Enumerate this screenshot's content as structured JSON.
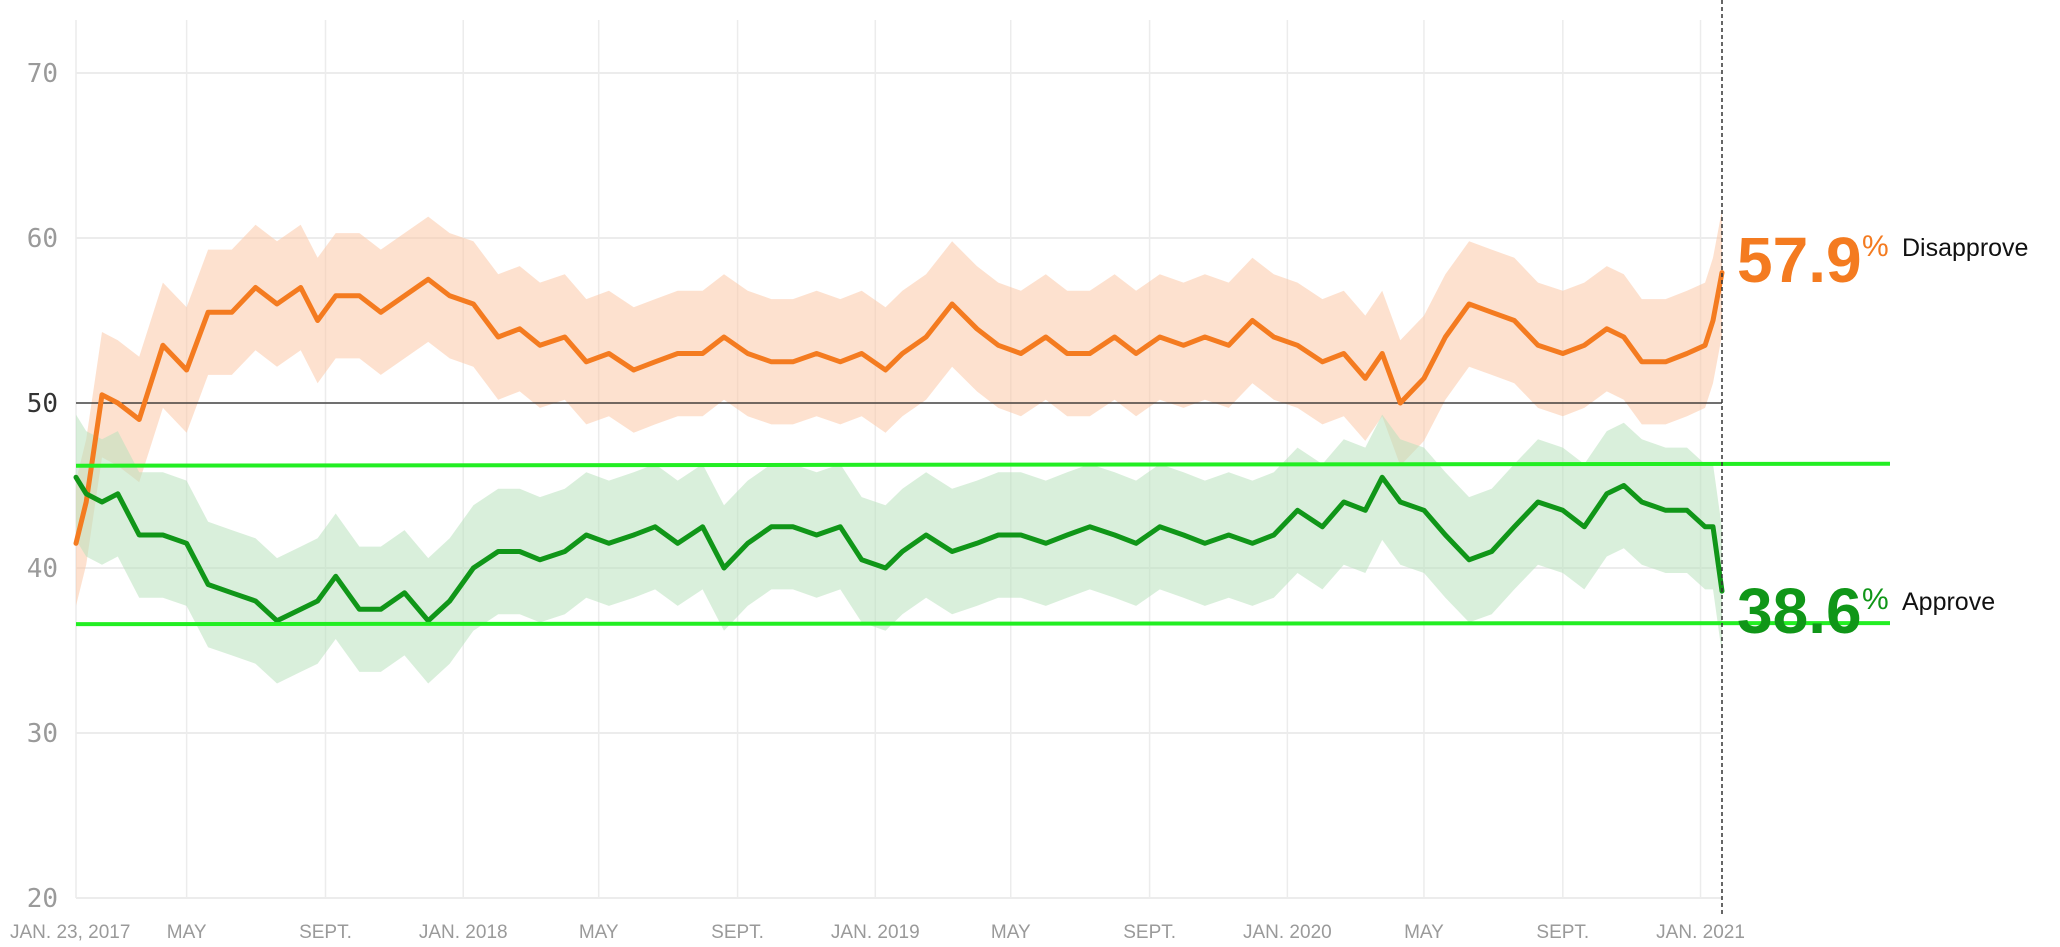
{
  "chart_data": {
    "type": "line",
    "x_ticks": [
      "JAN. 23, 2017",
      "MAY",
      "SEPT.",
      "JAN. 2018",
      "MAY",
      "SEPT.",
      "JAN. 2019",
      "MAY",
      "SEPT.",
      "JAN. 2020",
      "MAY",
      "SEPT.",
      "JAN. 2021"
    ],
    "x_tick_dates": [
      "2017-01-23",
      "2017-05-01",
      "2017-09-01",
      "2018-01-01",
      "2018-05-01",
      "2018-09-01",
      "2019-01-01",
      "2019-05-01",
      "2019-09-01",
      "2020-01-01",
      "2020-05-01",
      "2020-09-01",
      "2021-01-01"
    ],
    "x_range": [
      "2017-01-23",
      "2021-01-20"
    ],
    "y_ticks": [
      20,
      30,
      40,
      50,
      60,
      70
    ],
    "ylim": [
      20,
      72
    ],
    "grid": true,
    "reference_line": 50,
    "highlight_lines": [
      46.2,
      36.6
    ],
    "series": [
      {
        "name": "Disapprove",
        "color": "#f47b20",
        "band_color": "#fbc9a8",
        "final_value": "57.9",
        "pct_symbol": "%",
        "x": [
          "2017-01-23",
          "2017-02-01",
          "2017-02-15",
          "2017-03-01",
          "2017-03-20",
          "2017-04-10",
          "2017-05-01",
          "2017-05-20",
          "2017-06-10",
          "2017-07-01",
          "2017-07-20",
          "2017-08-10",
          "2017-08-25",
          "2017-09-10",
          "2017-10-01",
          "2017-10-20",
          "2017-11-10",
          "2017-12-01",
          "2017-12-20",
          "2018-01-10",
          "2018-02-01",
          "2018-02-20",
          "2018-03-10",
          "2018-04-01",
          "2018-04-20",
          "2018-05-10",
          "2018-06-01",
          "2018-06-20",
          "2018-07-10",
          "2018-08-01",
          "2018-08-20",
          "2018-09-10",
          "2018-10-01",
          "2018-10-20",
          "2018-11-10",
          "2018-12-01",
          "2018-12-20",
          "2019-01-10",
          "2019-01-25",
          "2019-02-15",
          "2019-03-10",
          "2019-04-01",
          "2019-04-20",
          "2019-05-10",
          "2019-06-01",
          "2019-06-20",
          "2019-07-10",
          "2019-08-01",
          "2019-08-20",
          "2019-09-10",
          "2019-10-01",
          "2019-10-20",
          "2019-11-10",
          "2019-12-01",
          "2019-12-20",
          "2020-01-10",
          "2020-02-01",
          "2020-02-20",
          "2020-03-10",
          "2020-03-25",
          "2020-04-10",
          "2020-05-01",
          "2020-05-20",
          "2020-06-10",
          "2020-06-30",
          "2020-07-20",
          "2020-08-10",
          "2020-09-01",
          "2020-09-20",
          "2020-10-10",
          "2020-10-25",
          "2020-11-10",
          "2020-12-01",
          "2020-12-20",
          "2021-01-05",
          "2021-01-12",
          "2021-01-20"
        ],
        "values": [
          41.5,
          44,
          50.5,
          50,
          49,
          53.5,
          52,
          55.5,
          55.5,
          57,
          56,
          57,
          55,
          56.5,
          56.5,
          55.5,
          56.5,
          57.5,
          56.5,
          56,
          54,
          54.5,
          53.5,
          54,
          52.5,
          53,
          52,
          52.5,
          53,
          53,
          54,
          53,
          52.5,
          52.5,
          53,
          52.5,
          53,
          52,
          53,
          54,
          56,
          54.5,
          53.5,
          53,
          54,
          53,
          53,
          54,
          53,
          54,
          53.5,
          54,
          53.5,
          55,
          54,
          53.5,
          52.5,
          53,
          51.5,
          53,
          50,
          51.5,
          54,
          56,
          55.5,
          55,
          53.5,
          53,
          53.5,
          54.5,
          54,
          52.5,
          52.5,
          53,
          53.5,
          55,
          57.9
        ]
      },
      {
        "name": "Approve",
        "color": "#109618",
        "band_color": "#b9e2bd",
        "final_value": "38.6",
        "pct_symbol": "%",
        "x": [
          "2017-01-23",
          "2017-02-01",
          "2017-02-15",
          "2017-03-01",
          "2017-03-20",
          "2017-04-10",
          "2017-05-01",
          "2017-05-20",
          "2017-06-10",
          "2017-07-01",
          "2017-07-20",
          "2017-08-10",
          "2017-08-25",
          "2017-09-10",
          "2017-10-01",
          "2017-10-20",
          "2017-11-10",
          "2017-12-01",
          "2017-12-20",
          "2018-01-10",
          "2018-02-01",
          "2018-02-20",
          "2018-03-10",
          "2018-04-01",
          "2018-04-20",
          "2018-05-10",
          "2018-06-01",
          "2018-06-20",
          "2018-07-10",
          "2018-08-01",
          "2018-08-20",
          "2018-09-10",
          "2018-10-01",
          "2018-10-20",
          "2018-11-10",
          "2018-12-01",
          "2018-12-20",
          "2019-01-10",
          "2019-01-25",
          "2019-02-15",
          "2019-03-10",
          "2019-04-01",
          "2019-04-20",
          "2019-05-10",
          "2019-06-01",
          "2019-06-20",
          "2019-07-10",
          "2019-08-01",
          "2019-08-20",
          "2019-09-10",
          "2019-10-01",
          "2019-10-20",
          "2019-11-10",
          "2019-12-01",
          "2019-12-20",
          "2020-01-10",
          "2020-02-01",
          "2020-02-20",
          "2020-03-10",
          "2020-03-25",
          "2020-04-10",
          "2020-05-01",
          "2020-05-20",
          "2020-06-10",
          "2020-06-30",
          "2020-07-20",
          "2020-08-10",
          "2020-09-01",
          "2020-09-20",
          "2020-10-10",
          "2020-10-25",
          "2020-11-10",
          "2020-12-01",
          "2020-12-20",
          "2021-01-05",
          "2021-01-12",
          "2021-01-20"
        ],
        "values": [
          45.5,
          44.5,
          44,
          44.5,
          42,
          42,
          41.5,
          39,
          38.5,
          38,
          36.8,
          37.5,
          38,
          39.5,
          37.5,
          37.5,
          38.5,
          36.8,
          38,
          40,
          41,
          41,
          40.5,
          41,
          42,
          41.5,
          42,
          42.5,
          41.5,
          42.5,
          40,
          41.5,
          42.5,
          42.5,
          42,
          42.5,
          40.5,
          40,
          41,
          42,
          41,
          41.5,
          42,
          42,
          41.5,
          42,
          42.5,
          42,
          41.5,
          42.5,
          42,
          41.5,
          42,
          41.5,
          42,
          43.5,
          42.5,
          44,
          43.5,
          45.5,
          44,
          43.5,
          42,
          40.5,
          41,
          42.5,
          44,
          43.5,
          42.5,
          44.5,
          45,
          44,
          43.5,
          43.5,
          42.5,
          42.5,
          38.6
        ]
      }
    ]
  }
}
